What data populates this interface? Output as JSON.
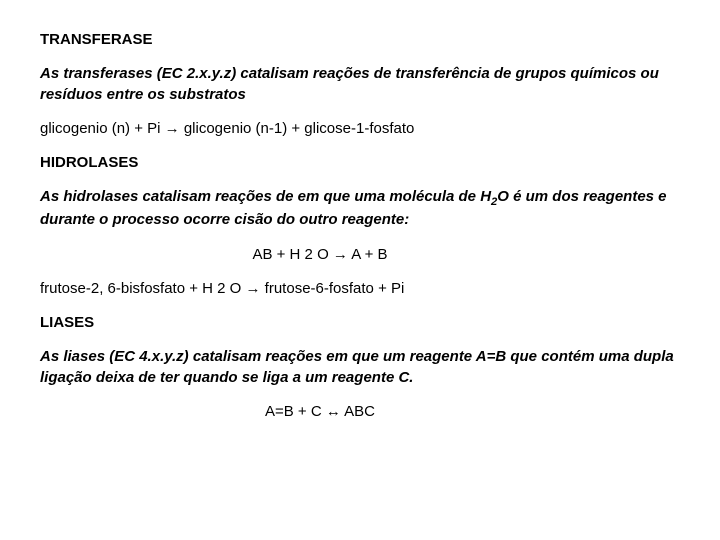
{
  "section1": {
    "heading": "TRANSFERASE",
    "desc_prefix": "As transferases (EC 2.x.y.z) catalisam reações de transferência de grupos químicos ou resíduos entre os substratos",
    "equation": "glicogenio (n) + Pi → glicogenio (n-1) + glicose-1-fosfato"
  },
  "section2": {
    "heading": "HIDROLASES",
    "desc_part1": "As hidrolases catalisam reações de em que uma molécula de H",
    "desc_sub1": "2",
    "desc_part2": "O é um dos reagentes e durante o processo ocorre cisão do outro reagente:",
    "equation": "AB + H 2 O → A + B",
    "example": "frutose-2, 6-bisfosfato + H 2 O → frutose-6-fosfato + Pi"
  },
  "section3": {
    "heading": "LIASES",
    "desc": "As liases (EC 4.x.y.z) catalisam reações em que um reagente A=B que contém uma dupla ligação deixa de ter quando se liga a um reagente C.",
    "equation": "A=B + C ↔ ABC"
  }
}
